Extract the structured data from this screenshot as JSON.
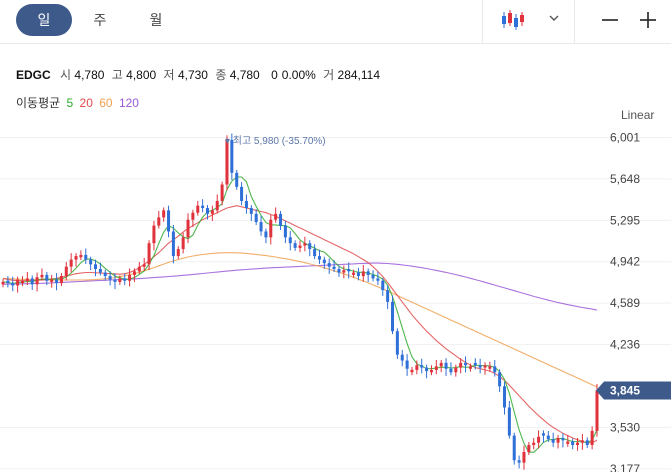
{
  "period_tabs": [
    {
      "label": "일",
      "active": true
    },
    {
      "label": "주",
      "active": false
    },
    {
      "label": "월",
      "active": false
    }
  ],
  "header": {
    "chart_type_icon": "candlestick-icon",
    "dropdown_icon": "chevron-down-icon",
    "minimize_icon": "minus-icon",
    "add_icon": "plus-icon"
  },
  "quote": {
    "symbol": "EDGC",
    "open_label": "시",
    "open": "4,780",
    "high_label": "고",
    "high": "4,800",
    "low_label": "저",
    "low": "4,730",
    "close_label": "종",
    "close": "4,780",
    "change": "0",
    "change_pct": "0.00%",
    "volume_label": "거",
    "volume": "284,114"
  },
  "moving_average": {
    "label": "이동평균",
    "periods": [
      {
        "value": "5",
        "color": "#2eaa2e"
      },
      {
        "value": "20",
        "color": "#e24a4a"
      },
      {
        "value": "60",
        "color": "#f0a050"
      },
      {
        "value": "120",
        "color": "#9b59d9"
      }
    ]
  },
  "scale_mode": "Linear",
  "chart_data": {
    "type": "candlestick",
    "y_ticks": [
      "6,001",
      "5,648",
      "5,295",
      "4,942",
      "4,589",
      "4,236",
      "3,530",
      "3,177"
    ],
    "ylim": [
      3150,
      6150
    ],
    "current_price": "3,845",
    "max_annotation": "최고 5,980 (-35.70%)",
    "up_color": "#e0323c",
    "down_color": "#2f6fd8",
    "closes": [
      4770,
      4760,
      4740,
      4790,
      4780,
      4800,
      4750,
      4810,
      4830,
      4780,
      4790,
      4760,
      4820,
      4900,
      4960,
      4990,
      5000,
      4960,
      4920,
      4880,
      4850,
      4820,
      4790,
      4770,
      4800,
      4780,
      4830,
      4860,
      4900,
      4920,
      5100,
      5250,
      5320,
      5380,
      5200,
      4990,
      5050,
      5150,
      5300,
      5360,
      5420,
      5400,
      5350,
      5380,
      5460,
      5600,
      5980,
      5700,
      5580,
      5460,
      5400,
      5350,
      5280,
      5200,
      5150,
      5300,
      5350,
      5250,
      5150,
      5100,
      5060,
      5080,
      5100,
      5050,
      4990,
      4960,
      4930,
      4900,
      4880,
      4850,
      4870,
      4860,
      4850,
      4820,
      4860,
      4830,
      4800,
      4780,
      4700,
      4600,
      4350,
      4150,
      4100,
      4030,
      4020,
      4060,
      4040,
      4010,
      4020,
      4050,
      4080,
      4030,
      4000,
      4040,
      4080,
      4060,
      4050,
      4060,
      4040,
      4060,
      4050,
      4000,
      3880,
      3700,
      3460,
      3250,
      3230,
      3320,
      3380,
      3400,
      3450,
      3460,
      3430,
      3400,
      3440,
      3420,
      3410,
      3380,
      3400,
      3420,
      3380,
      3500,
      3845
    ],
    "ma_5": [
      4770,
      4765,
      4757,
      4765,
      4768,
      4774,
      4772,
      4786,
      4794,
      4794,
      4792,
      4794,
      4796,
      4810,
      4846,
      4886,
      4934,
      4964,
      4966,
      4950,
      4922,
      4886,
      4852,
      4818,
      4806,
      4792,
      4794,
      4808,
      4834,
      4862,
      4922,
      4994,
      5098,
      5194,
      5250,
      5228,
      5188,
      5154,
      5138,
      5170,
      5254,
      5322,
      5366,
      5382,
      5402,
      5438,
      5558,
      5628,
      5664,
      5664,
      5624,
      5498,
      5414,
      5338,
      5276,
      5256,
      5256,
      5250,
      5250,
      5230,
      5182,
      5128,
      5098,
      5078,
      5058,
      5036,
      5024,
      4986,
      4942,
      4904,
      4880,
      4872,
      4862,
      4852,
      4852,
      4844,
      4834,
      4818,
      4794,
      4742,
      4646,
      4516,
      4380,
      4246,
      4130,
      4072,
      4050,
      4032,
      4030,
      4036,
      4042,
      4042,
      4036,
      4040,
      4048,
      4042,
      4046,
      4060,
      4058,
      4056,
      4054,
      4042,
      4006,
      3938,
      3820,
      3662,
      3510,
      3394,
      3320,
      3318,
      3356,
      3402,
      3424,
      3428,
      3434,
      3436,
      3422,
      3410,
      3410,
      3406,
      3402,
      3420,
      3509
    ],
    "ma_20": [
      4800,
      4790,
      4785,
      4780,
      4780,
      4780,
      4782,
      4784,
      4786,
      4790,
      4795,
      4800,
      4810,
      4820,
      4830,
      4840,
      4845,
      4850,
      4850,
      4848,
      4846,
      4843,
      4840,
      4838,
      4836,
      4840,
      4850,
      4868,
      4890,
      4920,
      4950,
      4985,
      5020,
      5060,
      5100,
      5130,
      5160,
      5195,
      5225,
      5250,
      5275,
      5300,
      5320,
      5340,
      5360,
      5380,
      5400,
      5410,
      5420,
      5410,
      5400,
      5390,
      5380,
      5370,
      5360,
      5345,
      5330,
      5310,
      5290,
      5270,
      5250,
      5230,
      5210,
      5190,
      5170,
      5150,
      5130,
      5110,
      5090,
      5070,
      5050,
      5030,
      5010,
      4985,
      4960,
      4935,
      4900,
      4860,
      4815,
      4765,
      4710,
      4655,
      4600,
      4545,
      4490,
      4440,
      4395,
      4350,
      4310,
      4270,
      4235,
      4200,
      4170,
      4140,
      4110,
      4085,
      4060,
      4040,
      4030,
      4020,
      4010,
      3990,
      3965,
      3930,
      3890,
      3845,
      3800,
      3755,
      3710,
      3670,
      3630,
      3595,
      3560,
      3530,
      3505,
      3480,
      3460,
      3440,
      3425,
      3410,
      3400,
      3400,
      3420
    ],
    "ma_60": [
      4800,
      4798,
      4796,
      4794,
      4792,
      4790,
      4789,
      4788,
      4787,
      4786,
      4786,
      4786,
      4786,
      4786,
      4786,
      4786,
      4786,
      4787,
      4788,
      4790,
      4793,
      4797,
      4802,
      4808,
      4815,
      4823,
      4832,
      4842,
      4853,
      4865,
      4878,
      4892,
      4907,
      4922,
      4936,
      4949,
      4961,
      4972,
      4982,
      4991,
      4998,
      5004,
      5009,
      5013,
      5016,
      5018,
      5019,
      5019,
      5018,
      5016,
      5013,
      5009,
      5004,
      4999,
      4994,
      4988,
      4982,
      4975,
      4968,
      4960,
      4952,
      4943,
      4934,
      4924,
      4913,
      4902,
      4890,
      4878,
      4865,
      4852,
      4838,
      4824,
      4809,
      4794,
      4778,
      4762,
      4745,
      4728,
      4710,
      4692,
      4673,
      4654,
      4635,
      4616,
      4597,
      4578,
      4559,
      4540,
      4521,
      4502,
      4483,
      4464,
      4445,
      4426,
      4407,
      4388,
      4369,
      4350,
      4331,
      4312,
      4293,
      4274,
      4255,
      4236,
      4217,
      4198,
      4179,
      4160,
      4141,
      4122,
      4103,
      4084,
      4065,
      4046,
      4027,
      4008,
      3989,
      3970,
      3951,
      3932,
      3913,
      3894,
      3875
    ],
    "ma_120": [
      4750,
      4751,
      4752,
      4753,
      4754,
      4755,
      4756,
      4757,
      4758,
      4760,
      4762,
      4764,
      4766,
      4768,
      4770,
      4772,
      4774,
      4776,
      4778,
      4780,
      4782,
      4784,
      4786,
      4788,
      4790,
      4792,
      4794,
      4796,
      4798,
      4801,
      4804,
      4807,
      4810,
      4813,
      4816,
      4819,
      4822,
      4826,
      4830,
      4834,
      4838,
      4842,
      4846,
      4850,
      4854,
      4858,
      4862,
      4866,
      4870,
      4873,
      4876,
      4879,
      4882,
      4885,
      4888,
      4890,
      4892,
      4894,
      4896,
      4898,
      4900,
      4902,
      4904,
      4906,
      4908,
      4910,
      4912,
      4914,
      4916,
      4918,
      4920,
      4922,
      4924,
      4926,
      4928,
      4929,
      4930,
      4930,
      4929,
      4927,
      4924,
      4920,
      4915,
      4910,
      4904,
      4898,
      4891,
      4884,
      4876,
      4868,
      4860,
      4851,
      4842,
      4832,
      4822,
      4812,
      4801,
      4790,
      4779,
      4767,
      4755,
      4743,
      4731,
      4719,
      4707,
      4695,
      4683,
      4671,
      4659,
      4647,
      4636,
      4625,
      4614,
      4604,
      4594,
      4585,
      4576,
      4568,
      4560,
      4552,
      4545,
      4538,
      4530
    ]
  }
}
